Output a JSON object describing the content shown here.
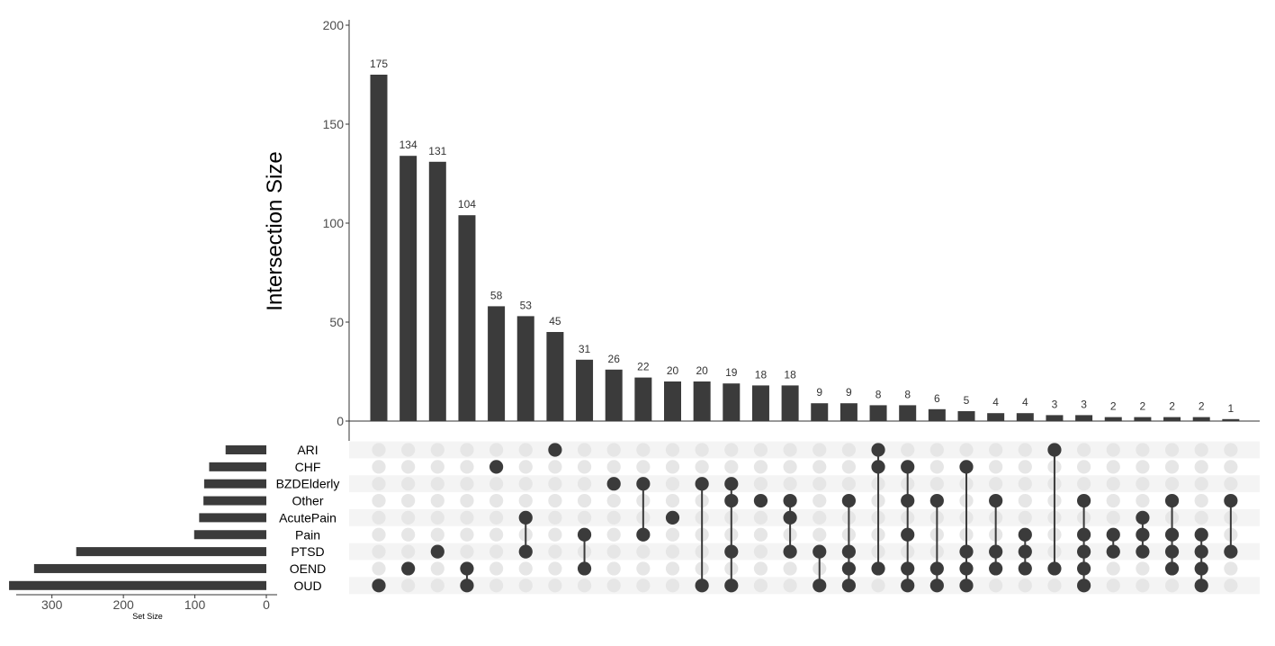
{
  "chart_data": {
    "type": "upset",
    "ylabel": "Intersection Size",
    "set_size_label": "Set Size",
    "intersection_ylim": [
      0,
      200
    ],
    "intersection_ticks": [
      0,
      50,
      100,
      150,
      200
    ],
    "set_size_ticks": [
      0,
      100,
      200,
      300
    ],
    "set_size_max": 350,
    "colors": {
      "bar": "#3b3b3b",
      "dot_on": "#3b3b3b",
      "dot_off": "#e6e6e6",
      "band": "#f4f4f4",
      "axis": "#333333"
    },
    "sets": [
      {
        "name": "ARI",
        "size": 57
      },
      {
        "name": "CHF",
        "size": 80
      },
      {
        "name": "BZDElderly",
        "size": 87
      },
      {
        "name": "Other",
        "size": 88
      },
      {
        "name": "AcutePain",
        "size": 94
      },
      {
        "name": "Pain",
        "size": 101
      },
      {
        "name": "PTSD",
        "size": 266
      },
      {
        "name": "OEND",
        "size": 325
      },
      {
        "name": "OUD",
        "size": 360
      }
    ],
    "intersections": [
      {
        "value": 175,
        "label": "175",
        "sets": [
          "OUD"
        ]
      },
      {
        "value": 134,
        "label": "134",
        "sets": [
          "OEND"
        ]
      },
      {
        "value": 131,
        "label": "131",
        "sets": [
          "PTSD"
        ]
      },
      {
        "value": 104,
        "label": "104",
        "sets": [
          "OEND",
          "OUD"
        ]
      },
      {
        "value": 58,
        "label": "58",
        "sets": [
          "CHF"
        ]
      },
      {
        "value": 53,
        "label": "53",
        "sets": [
          "AcutePain",
          "PTSD"
        ]
      },
      {
        "value": 45,
        "label": "45",
        "sets": [
          "ARI"
        ]
      },
      {
        "value": 31,
        "label": "31",
        "sets": [
          "Pain",
          "OEND"
        ]
      },
      {
        "value": 26,
        "label": "26",
        "sets": [
          "BZDElderly"
        ]
      },
      {
        "value": 22,
        "label": "22",
        "sets": [
          "BZDElderly",
          "Pain"
        ]
      },
      {
        "value": 20,
        "label": "20",
        "sets": [
          "AcutePain"
        ]
      },
      {
        "value": 20,
        "label": "20",
        "sets": [
          "BZDElderly",
          "OUD"
        ]
      },
      {
        "value": 19,
        "label": "19",
        "sets": [
          "BZDElderly",
          "Other",
          "PTSD",
          "OUD"
        ]
      },
      {
        "value": 18,
        "label": "18",
        "sets": [
          "Other"
        ]
      },
      {
        "value": 18,
        "label": "18",
        "sets": [
          "Other",
          "AcutePain",
          "PTSD"
        ]
      },
      {
        "value": 9,
        "label": "9",
        "sets": [
          "PTSD",
          "OUD"
        ]
      },
      {
        "value": 9,
        "label": "9",
        "sets": [
          "Other",
          "PTSD",
          "OEND",
          "OUD"
        ]
      },
      {
        "value": 8,
        "label": "8",
        "sets": [
          "ARI",
          "CHF",
          "OEND"
        ]
      },
      {
        "value": 8,
        "label": "8",
        "sets": [
          "CHF",
          "Other",
          "Pain",
          "OEND",
          "OUD"
        ]
      },
      {
        "value": 6,
        "label": "6",
        "sets": [
          "Other",
          "OEND",
          "OUD"
        ]
      },
      {
        "value": 5,
        "label": "5",
        "sets": [
          "CHF",
          "PTSD",
          "OEND",
          "OUD"
        ]
      },
      {
        "value": 4,
        "label": "4",
        "sets": [
          "Other",
          "PTSD",
          "OEND"
        ]
      },
      {
        "value": 4,
        "label": "4",
        "sets": [
          "Pain",
          "PTSD",
          "OEND"
        ]
      },
      {
        "value": 3,
        "label": "3",
        "sets": [
          "ARI",
          "OEND"
        ]
      },
      {
        "value": 3,
        "label": "3",
        "sets": [
          "Other",
          "Pain",
          "PTSD",
          "OEND",
          "OUD"
        ]
      },
      {
        "value": 2,
        "label": "2",
        "sets": [
          "Pain",
          "PTSD"
        ]
      },
      {
        "value": 2,
        "label": "2",
        "sets": [
          "AcutePain",
          "Pain",
          "PTSD"
        ]
      },
      {
        "value": 2,
        "label": "2",
        "sets": [
          "Other",
          "Pain",
          "PTSD",
          "OEND"
        ]
      },
      {
        "value": 2,
        "label": "2",
        "sets": [
          "Pain",
          "PTSD",
          "OEND",
          "OUD"
        ]
      },
      {
        "value": 1,
        "label": "1",
        "sets": [
          "Other",
          "PTSD"
        ]
      }
    ]
  }
}
